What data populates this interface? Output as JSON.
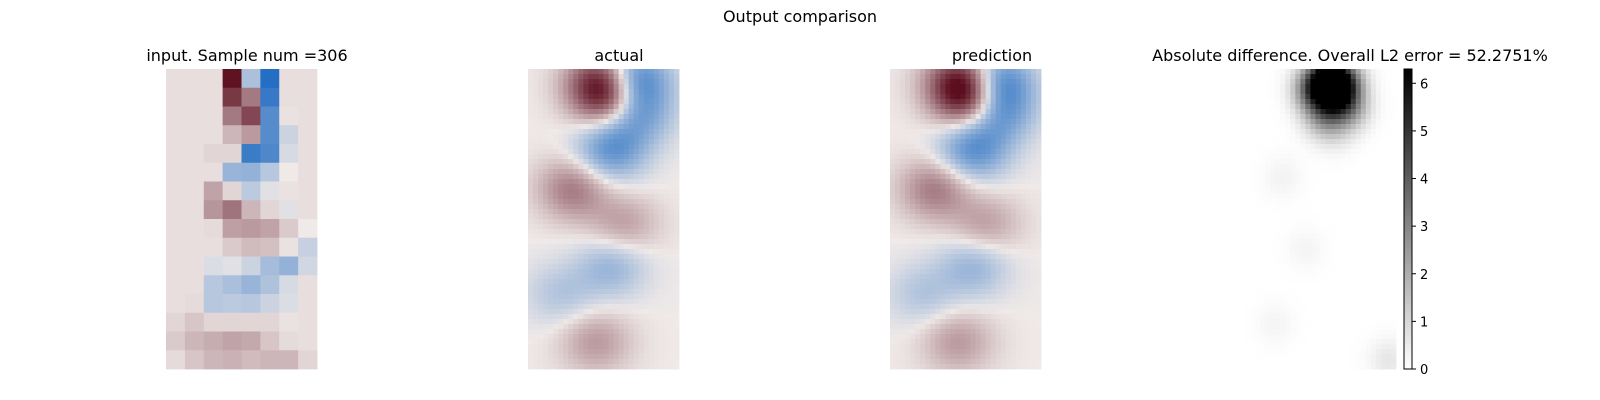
{
  "figure": {
    "suptitle": "Output comparison"
  },
  "chart_data": [
    {
      "type": "heatmap",
      "title": "input. Sample num =306",
      "colormap": "diverging-red-blue",
      "colors": {
        "negative": "#1565c0",
        "neutral": "#efe9e8",
        "positive": "#5c0e1e"
      },
      "vlim": [
        -1,
        1
      ],
      "grid": {
        "rows": 16,
        "cols": 8
      },
      "values": [
        [
          0.03,
          0.03,
          0.03,
          0.98,
          -0.25,
          -0.92,
          0.03,
          0.03
        ],
        [
          0.03,
          0.03,
          0.03,
          0.78,
          0.45,
          -0.82,
          0.03,
          0.03
        ],
        [
          0.03,
          0.03,
          0.03,
          0.45,
          0.7,
          -0.66,
          0.02,
          0.03
        ],
        [
          0.03,
          0.03,
          0.03,
          0.18,
          0.3,
          -0.66,
          -0.12,
          0.03
        ],
        [
          0.03,
          0.03,
          0.06,
          0.06,
          -0.8,
          -0.7,
          -0.08,
          0.03
        ],
        [
          0.03,
          0.03,
          0.03,
          -0.34,
          -0.36,
          -0.2,
          0.0,
          0.03
        ],
        [
          0.03,
          0.03,
          0.26,
          0.06,
          -0.18,
          -0.04,
          0.02,
          0.03
        ],
        [
          0.03,
          0.03,
          0.32,
          0.48,
          0.18,
          0.06,
          -0.04,
          0.03
        ],
        [
          0.03,
          0.03,
          0.04,
          0.28,
          0.3,
          0.26,
          0.1,
          0.0
        ],
        [
          0.03,
          0.03,
          0.03,
          0.1,
          0.16,
          0.14,
          0.02,
          -0.14
        ],
        [
          0.03,
          0.03,
          -0.06,
          -0.04,
          -0.12,
          -0.28,
          -0.36,
          -0.1
        ],
        [
          0.03,
          0.03,
          -0.2,
          -0.26,
          -0.34,
          -0.24,
          -0.08,
          0.03
        ],
        [
          0.03,
          0.04,
          -0.2,
          -0.18,
          -0.2,
          -0.12,
          -0.06,
          0.03
        ],
        [
          0.06,
          0.12,
          0.06,
          0.06,
          0.06,
          0.06,
          0.02,
          0.03
        ],
        [
          0.1,
          0.18,
          0.22,
          0.26,
          0.24,
          0.12,
          0.04,
          0.03
        ],
        [
          0.04,
          0.12,
          0.18,
          0.2,
          0.16,
          0.18,
          0.18,
          0.06
        ]
      ]
    },
    {
      "type": "heatmap",
      "title": "actual",
      "colormap": "diverging-red-blue",
      "colors": {
        "negative": "#1565c0",
        "neutral": "#efe9e8",
        "positive": "#5c0e1e"
      },
      "vlim": [
        -1,
        1
      ],
      "blobs": [
        {
          "x": 0.5,
          "y": 0.05,
          "v": 1.0
        },
        {
          "x": 0.57,
          "y": 0.11,
          "v": 0.6
        },
        {
          "x": 0.69,
          "y": 0.04,
          "v": -0.95
        },
        {
          "x": 0.71,
          "y": 0.15,
          "v": -0.6
        },
        {
          "x": 0.55,
          "y": 0.27,
          "v": -0.6
        },
        {
          "x": 0.3,
          "y": 0.4,
          "v": 0.45
        },
        {
          "x": 0.63,
          "y": 0.52,
          "v": 0.28
        },
        {
          "x": 0.55,
          "y": 0.66,
          "v": -0.34
        },
        {
          "x": 0.22,
          "y": 0.75,
          "v": -0.22
        },
        {
          "x": 0.45,
          "y": 0.91,
          "v": 0.3
        }
      ]
    },
    {
      "type": "heatmap",
      "title": "prediction",
      "colormap": "diverging-red-blue",
      "colors": {
        "negative": "#1565c0",
        "neutral": "#efe9e8",
        "positive": "#5c0e1e"
      },
      "vlim": [
        -1,
        1
      ],
      "blobs": [
        {
          "x": 0.48,
          "y": 0.05,
          "v": 1.0
        },
        {
          "x": 0.56,
          "y": 0.11,
          "v": 0.7
        },
        {
          "x": 0.7,
          "y": 0.05,
          "v": -0.9
        },
        {
          "x": 0.71,
          "y": 0.15,
          "v": -0.6
        },
        {
          "x": 0.55,
          "y": 0.27,
          "v": -0.62
        },
        {
          "x": 0.3,
          "y": 0.4,
          "v": 0.45
        },
        {
          "x": 0.63,
          "y": 0.52,
          "v": 0.28
        },
        {
          "x": 0.55,
          "y": 0.66,
          "v": -0.34
        },
        {
          "x": 0.22,
          "y": 0.75,
          "v": -0.22
        },
        {
          "x": 0.45,
          "y": 0.91,
          "v": 0.3
        }
      ]
    },
    {
      "type": "heatmap",
      "title": "Absolute difference. Overall L2 error = 52.2751%",
      "colormap": "greys",
      "colors": {
        "low": "#ffffff",
        "high": "#000000"
      },
      "colorbar": {
        "vmin": 0,
        "vmax": 6.3,
        "ticks": [
          "0",
          "1",
          "2",
          "3",
          "4",
          "5",
          "6"
        ]
      },
      "blobs": [
        {
          "x": 0.55,
          "y": 0.03,
          "v": 5.5
        },
        {
          "x": 0.65,
          "y": 0.05,
          "v": 4.5
        },
        {
          "x": 0.45,
          "y": 0.07,
          "v": 3.5
        },
        {
          "x": 0.58,
          "y": 0.11,
          "v": 3.0
        },
        {
          "x": 0.7,
          "y": 0.13,
          "v": 2.0
        },
        {
          "x": 0.5,
          "y": 0.16,
          "v": 1.5
        },
        {
          "x": 0.6,
          "y": 0.2,
          "v": 0.8
        },
        {
          "x": 0.25,
          "y": 0.36,
          "v": 0.3
        },
        {
          "x": 0.4,
          "y": 0.6,
          "v": 0.25
        },
        {
          "x": 0.2,
          "y": 0.85,
          "v": 0.25
        },
        {
          "x": 0.95,
          "y": 0.97,
          "v": 0.6
        }
      ]
    }
  ]
}
